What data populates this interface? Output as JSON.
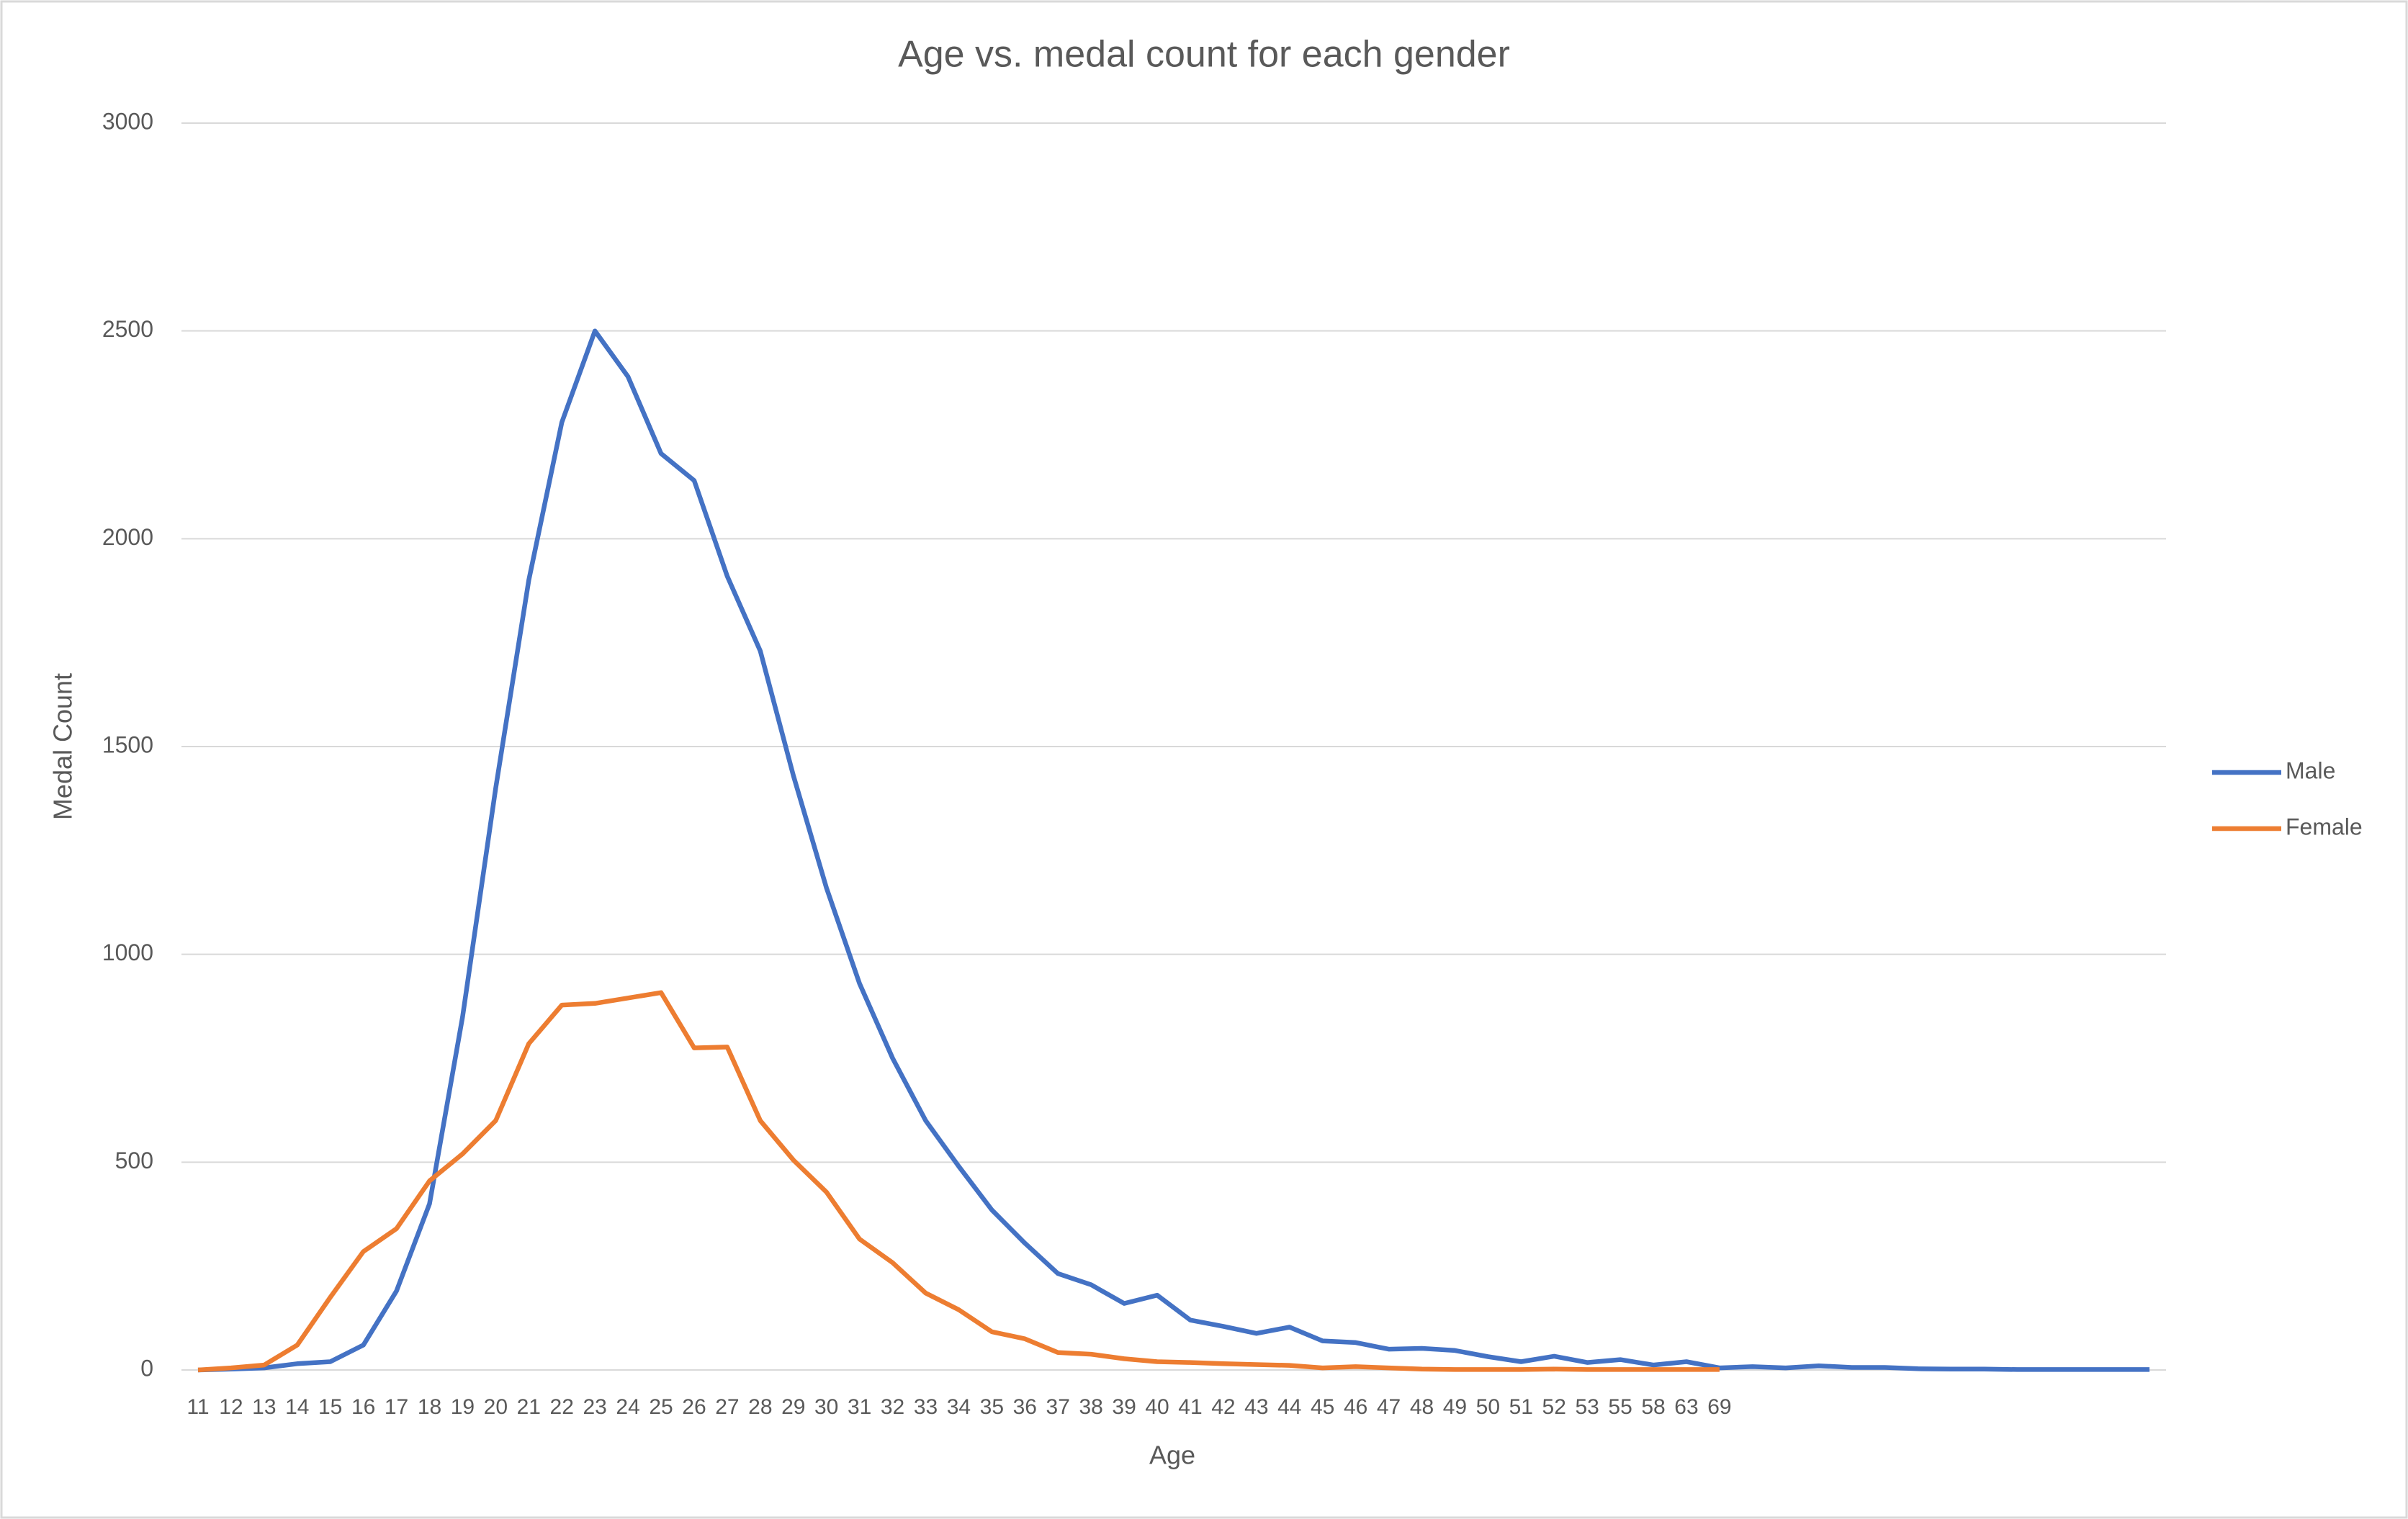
{
  "chart_data": {
    "type": "line",
    "title": "Age vs. medal count for each gender",
    "x_label": "Age",
    "y_label": "Medal Count",
    "categories": [
      "11",
      "12",
      "13",
      "14",
      "15",
      "16",
      "17",
      "18",
      "19",
      "20",
      "21",
      "22",
      "23",
      "24",
      "25",
      "26",
      "27",
      "28",
      "29",
      "30",
      "31",
      "32",
      "33",
      "34",
      "35",
      "36",
      "37",
      "38",
      "39",
      "40",
      "41",
      "42",
      "43",
      "44",
      "45",
      "46",
      "47",
      "48",
      "49",
      "50",
      "51",
      "52",
      "53",
      "55",
      "58",
      "63",
      "69",
      null,
      null,
      null,
      null,
      null,
      null,
      null,
      null,
      null,
      null,
      null,
      null,
      null
    ],
    "series": [
      {
        "name": "Male",
        "color": "#4472c4",
        "values": [
          0,
          2,
          5,
          15,
          20,
          60,
          190,
          400,
          850,
          1400,
          1900,
          2280,
          2500,
          2390,
          2205,
          2140,
          1910,
          1730,
          1430,
          1160,
          930,
          750,
          600,
          490,
          385,
          305,
          232,
          205,
          160,
          180,
          120,
          105,
          88,
          103,
          70,
          66,
          50,
          52,
          47,
          32,
          20,
          33,
          18,
          25,
          12,
          20,
          5,
          8,
          5,
          10,
          6,
          6,
          3,
          2,
          2,
          1,
          1,
          1,
          1,
          1
        ]
      },
      {
        "name": "Female",
        "color": "#ed7d31",
        "values": [
          0,
          5,
          12,
          60,
          175,
          285,
          340,
          455,
          520,
          600,
          785,
          878,
          882,
          895,
          908,
          775,
          777,
          600,
          505,
          428,
          315,
          258,
          185,
          145,
          92,
          75,
          42,
          38,
          27,
          20,
          18,
          15,
          13,
          11,
          5,
          8,
          5,
          2,
          1,
          1,
          1,
          2,
          1,
          1,
          1,
          1,
          1,
          null,
          null,
          null,
          null,
          null,
          null,
          null,
          null,
          null,
          null,
          null,
          null,
          null
        ]
      }
    ],
    "ylim": [
      0,
      3000
    ],
    "yticks": [
      0,
      500,
      1000,
      1500,
      2000,
      2500,
      3000
    ],
    "grid": true,
    "legend": "right"
  }
}
